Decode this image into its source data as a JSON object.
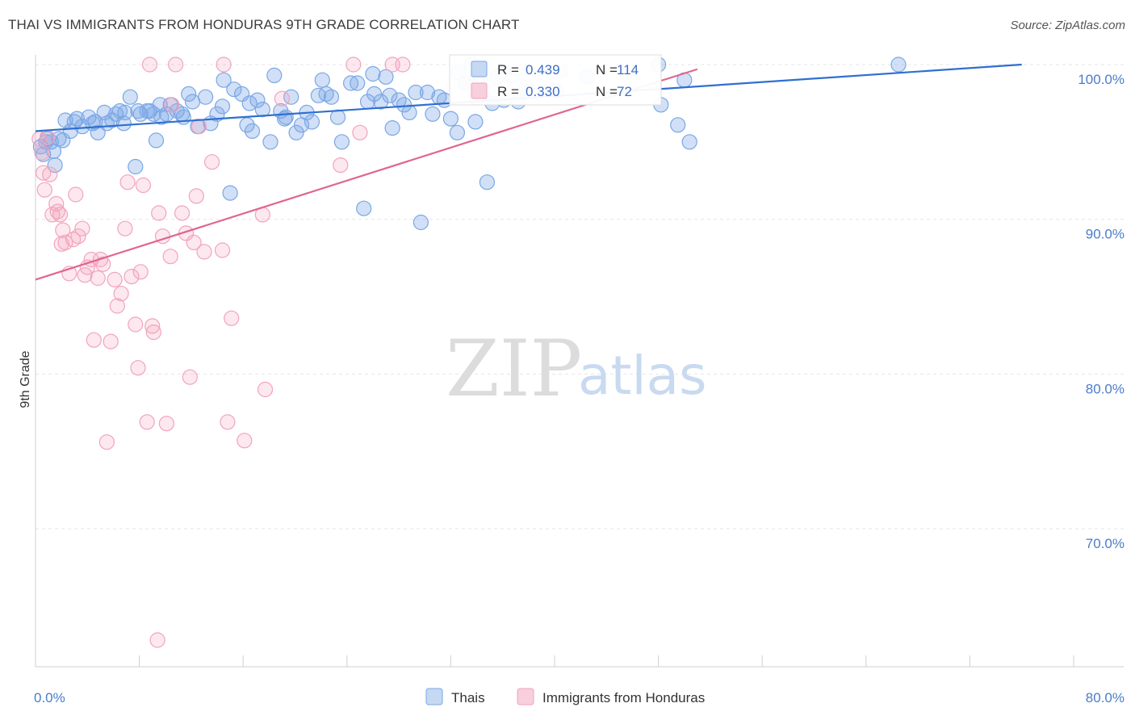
{
  "title": "THAI VS IMMIGRANTS FROM HONDURAS 9TH GRADE CORRELATION CHART",
  "source": "Source: ZipAtlas.com",
  "watermark": {
    "left": "ZIP",
    "right": "atlas"
  },
  "colors": {
    "thais": "#7aa7e6",
    "honduras": "#f2a3bd",
    "thais_line": "#2f6fd1",
    "honduras_line": "#e0668f",
    "tick_text": "#4a7cc9"
  },
  "chart_data": {
    "type": "scatter",
    "title": "THAI VS IMMIGRANTS FROM HONDURAS 9TH GRADE CORRELATION CHART",
    "xlabel": "",
    "ylabel": "9th Grade",
    "xlim": [
      0,
      80
    ],
    "ylim": [
      60,
      100
    ],
    "x_tick_labels": [
      "0.0%",
      "80.0%"
    ],
    "y_ticks": [
      70,
      80,
      90,
      100
    ],
    "y_tick_labels": [
      "70.0%",
      "80.0%",
      "90.0%",
      "100.0%"
    ],
    "grid": true,
    "legend_position": "bottom-center",
    "stats_box": [
      {
        "r_label": "R =",
        "r": "0.439",
        "n_label": "N =",
        "n": "114"
      },
      {
        "r_label": "R =",
        "r": "0.330",
        "n_label": "N =",
        "n": "72"
      }
    ],
    "series": [
      {
        "name": "Thais",
        "trend": {
          "x": [
            0,
            76
          ],
          "y": [
            95.7,
            100.0
          ]
        },
        "points": [
          [
            0.4,
            94.7
          ],
          [
            0.6,
            94.2
          ],
          [
            0.8,
            95.0
          ],
          [
            1.2,
            95.0
          ],
          [
            1.5,
            93.5
          ],
          [
            1.8,
            95.2
          ],
          [
            2.3,
            96.4
          ],
          [
            2.7,
            95.7
          ],
          [
            3.0,
            96.3
          ],
          [
            3.6,
            96.0
          ],
          [
            4.1,
            96.6
          ],
          [
            4.6,
            96.3
          ],
          [
            4.8,
            95.6
          ],
          [
            5.3,
            96.9
          ],
          [
            5.5,
            96.2
          ],
          [
            6.2,
            96.8
          ],
          [
            6.5,
            97.0
          ],
          [
            6.8,
            96.2
          ],
          [
            7.3,
            97.9
          ],
          [
            7.7,
            93.4
          ],
          [
            7.9,
            97.0
          ],
          [
            8.1,
            96.8
          ],
          [
            8.6,
            97.0
          ],
          [
            9.1,
            96.8
          ],
          [
            9.3,
            95.1
          ],
          [
            9.7,
            96.6
          ],
          [
            10.1,
            96.8
          ],
          [
            10.4,
            97.4
          ],
          [
            10.9,
            97.0
          ],
          [
            11.3,
            96.8
          ],
          [
            11.8,
            98.1
          ],
          [
            12.1,
            97.6
          ],
          [
            12.5,
            96.0
          ],
          [
            13.1,
            97.9
          ],
          [
            13.5,
            96.2
          ],
          [
            14.0,
            96.8
          ],
          [
            14.4,
            97.3
          ],
          [
            15.0,
            91.7
          ],
          [
            15.3,
            98.4
          ],
          [
            15.9,
            98.1
          ],
          [
            16.3,
            96.1
          ],
          [
            16.7,
            95.7
          ],
          [
            17.1,
            97.7
          ],
          [
            17.5,
            97.1
          ],
          [
            18.1,
            95.0
          ],
          [
            18.4,
            99.3
          ],
          [
            18.9,
            97.0
          ],
          [
            19.3,
            96.6
          ],
          [
            19.7,
            97.9
          ],
          [
            20.1,
            95.6
          ],
          [
            20.5,
            96.1
          ],
          [
            20.9,
            96.9
          ],
          [
            21.3,
            96.3
          ],
          [
            21.8,
            98.0
          ],
          [
            22.4,
            98.1
          ],
          [
            22.8,
            97.9
          ],
          [
            23.3,
            96.6
          ],
          [
            23.6,
            95.0
          ],
          [
            24.3,
            98.8
          ],
          [
            24.8,
            98.8
          ],
          [
            25.3,
            90.7
          ],
          [
            25.6,
            97.6
          ],
          [
            26.1,
            98.1
          ],
          [
            26.6,
            97.6
          ],
          [
            27.0,
            99.2
          ],
          [
            27.5,
            95.9
          ],
          [
            28.0,
            97.7
          ],
          [
            28.4,
            97.4
          ],
          [
            28.8,
            96.9
          ],
          [
            29.3,
            98.2
          ],
          [
            29.7,
            89.8
          ],
          [
            30.2,
            98.2
          ],
          [
            30.6,
            96.8
          ],
          [
            31.1,
            97.9
          ],
          [
            31.5,
            97.7
          ],
          [
            32.0,
            96.5
          ],
          [
            32.5,
            95.6
          ],
          [
            33.1,
            98.8
          ],
          [
            33.6,
            100.0
          ],
          [
            33.9,
            96.3
          ],
          [
            34.3,
            99.0
          ],
          [
            34.8,
            92.4
          ],
          [
            35.2,
            97.5
          ],
          [
            35.6,
            99.2
          ],
          [
            36.1,
            97.7
          ],
          [
            36.7,
            99.3
          ],
          [
            37.2,
            97.6
          ],
          [
            37.8,
            98.5
          ],
          [
            48.2,
            97.4
          ],
          [
            49.5,
            96.1
          ],
          [
            50.4,
            95.0
          ],
          [
            66.5,
            100.0
          ],
          [
            50.0,
            99.0
          ],
          [
            48.0,
            100.0
          ],
          [
            42.5,
            99.2
          ],
          [
            40.1,
            98.3
          ],
          [
            34.0,
            99.0
          ],
          [
            32.6,
            99.5
          ],
          [
            26.0,
            99.4
          ],
          [
            22.1,
            99.0
          ],
          [
            14.5,
            99.0
          ],
          [
            9.6,
            97.4
          ],
          [
            8.8,
            97.0
          ],
          [
            6.9,
            96.9
          ],
          [
            5.9,
            96.4
          ],
          [
            4.4,
            96.2
          ],
          [
            3.2,
            96.5
          ],
          [
            2.1,
            95.1
          ],
          [
            1.4,
            94.4
          ],
          [
            0.9,
            95.2
          ],
          [
            11.4,
            96.6
          ],
          [
            16.5,
            97.5
          ],
          [
            19.2,
            96.5
          ],
          [
            27.3,
            98.0
          ]
        ]
      },
      {
        "name": "Immigrants from Honduras",
        "trend": {
          "x": [
            0,
            51
          ],
          "y": [
            86.1,
            99.7
          ]
        },
        "points": [
          [
            0.3,
            95.2
          ],
          [
            0.5,
            94.3
          ],
          [
            0.6,
            93.0
          ],
          [
            0.7,
            91.9
          ],
          [
            0.9,
            95.3
          ],
          [
            1.1,
            92.9
          ],
          [
            1.3,
            90.3
          ],
          [
            1.6,
            91.0
          ],
          [
            1.7,
            90.5
          ],
          [
            1.9,
            90.3
          ],
          [
            2.0,
            88.4
          ],
          [
            2.1,
            89.3
          ],
          [
            2.3,
            88.5
          ],
          [
            2.6,
            86.5
          ],
          [
            2.9,
            88.7
          ],
          [
            3.1,
            91.6
          ],
          [
            3.3,
            88.9
          ],
          [
            3.6,
            89.4
          ],
          [
            3.8,
            86.4
          ],
          [
            4.0,
            86.9
          ],
          [
            4.3,
            87.4
          ],
          [
            4.5,
            82.2
          ],
          [
            4.8,
            86.2
          ],
          [
            5.0,
            87.4
          ],
          [
            5.2,
            87.1
          ],
          [
            5.5,
            75.6
          ],
          [
            5.8,
            82.1
          ],
          [
            6.1,
            86.1
          ],
          [
            6.3,
            84.4
          ],
          [
            6.6,
            85.2
          ],
          [
            6.9,
            89.4
          ],
          [
            7.1,
            92.4
          ],
          [
            7.4,
            86.3
          ],
          [
            7.7,
            83.2
          ],
          [
            7.9,
            80.4
          ],
          [
            8.1,
            86.6
          ],
          [
            8.3,
            92.2
          ],
          [
            8.6,
            76.9
          ],
          [
            8.8,
            100.0
          ],
          [
            9.0,
            83.1
          ],
          [
            9.1,
            82.7
          ],
          [
            9.4,
            62.8
          ],
          [
            9.5,
            90.4
          ],
          [
            9.8,
            88.9
          ],
          [
            10.1,
            76.8
          ],
          [
            10.4,
            87.6
          ],
          [
            10.5,
            97.4
          ],
          [
            10.8,
            100.0
          ],
          [
            11.3,
            90.4
          ],
          [
            11.6,
            89.1
          ],
          [
            11.9,
            79.8
          ],
          [
            12.2,
            88.5
          ],
          [
            12.4,
            91.5
          ],
          [
            12.6,
            96.0
          ],
          [
            13.0,
            87.9
          ],
          [
            13.6,
            93.7
          ],
          [
            14.4,
            88.0
          ],
          [
            14.5,
            100.0
          ],
          [
            14.8,
            76.9
          ],
          [
            15.1,
            83.6
          ],
          [
            16.1,
            75.7
          ],
          [
            17.5,
            90.3
          ],
          [
            17.7,
            79.0
          ],
          [
            19.0,
            97.8
          ],
          [
            23.5,
            93.5
          ],
          [
            24.5,
            100.0
          ],
          [
            25.0,
            95.6
          ],
          [
            27.5,
            100.0
          ],
          [
            28.3,
            100.0
          ],
          [
            33.5,
            98.8
          ],
          [
            34.0,
            97.9
          ],
          [
            40.5,
            99.6
          ]
        ]
      }
    ]
  },
  "legend": [
    {
      "label": "Thais"
    },
    {
      "label": "Immigrants from Honduras"
    }
  ]
}
